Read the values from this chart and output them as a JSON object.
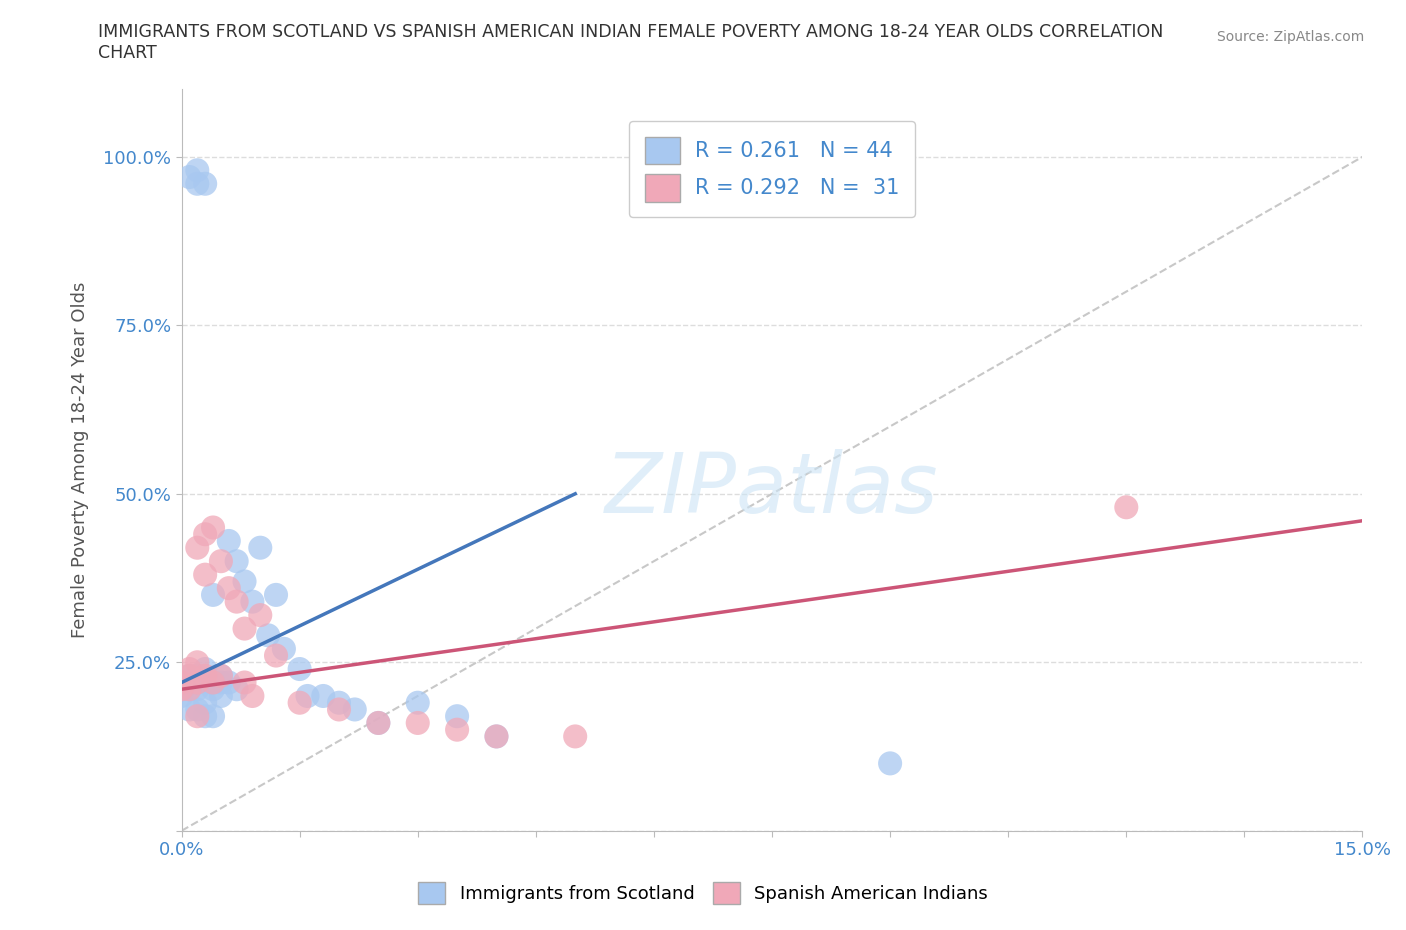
{
  "title": "IMMIGRANTS FROM SCOTLAND VS SPANISH AMERICAN INDIAN FEMALE POVERTY AMONG 18-24 YEAR OLDS CORRELATION\nCHART",
  "source": "Source: ZipAtlas.com",
  "ylabel": "Female Poverty Among 18-24 Year Olds",
  "xlim": [
    0.0,
    0.15
  ],
  "ylim": [
    0.0,
    1.1
  ],
  "ytick_positions": [
    0.0,
    0.25,
    0.5,
    0.75,
    1.0
  ],
  "ytick_labels": [
    "",
    "25.0%",
    "50.0%",
    "75.0%",
    "100.0%"
  ],
  "watermark": "ZIPatlas",
  "blue_color": "#a8c8f0",
  "pink_color": "#f0a8b8",
  "blue_line_color": "#4477bb",
  "pink_line_color": "#cc5577",
  "diag_line_color": "#c8c8c8",
  "R_blue": 0.261,
  "N_blue": 44,
  "R_pink": 0.292,
  "N_pink": 31,
  "grid_color": "#dddddd",
  "background_color": "#ffffff",
  "blue_line_x": [
    0.0,
    0.05
  ],
  "blue_line_y": [
    0.22,
    0.5
  ],
  "pink_line_x": [
    0.0,
    0.15
  ],
  "pink_line_y": [
    0.21,
    0.46
  ],
  "scotland_x": [
    0.0,
    0.0,
    0.001,
    0.001,
    0.001,
    0.001,
    0.002,
    0.002,
    0.002,
    0.002,
    0.003,
    0.003,
    0.003,
    0.004,
    0.004,
    0.004,
    0.005,
    0.005,
    0.005,
    0.006,
    0.006,
    0.007,
    0.007,
    0.008,
    0.009,
    0.01,
    0.011,
    0.012,
    0.013,
    0.015,
    0.016,
    0.018,
    0.02,
    0.022,
    0.025,
    0.03,
    0.035,
    0.04,
    0.09,
    0.001,
    0.002,
    0.003,
    0.003,
    0.004
  ],
  "scotland_y": [
    0.22,
    0.2,
    0.22,
    0.21,
    0.23,
    0.97,
    0.23,
    0.21,
    0.96,
    0.98,
    0.22,
    0.24,
    0.96,
    0.22,
    0.35,
    0.21,
    0.23,
    0.22,
    0.2,
    0.43,
    0.22,
    0.4,
    0.21,
    0.37,
    0.34,
    0.42,
    0.29,
    0.35,
    0.27,
    0.24,
    0.2,
    0.2,
    0.19,
    0.18,
    0.16,
    0.19,
    0.17,
    0.14,
    0.1,
    0.18,
    0.18,
    0.17,
    0.19,
    0.17
  ],
  "spanish_x": [
    0.0,
    0.0,
    0.001,
    0.001,
    0.001,
    0.002,
    0.002,
    0.002,
    0.003,
    0.003,
    0.003,
    0.004,
    0.004,
    0.005,
    0.005,
    0.006,
    0.007,
    0.008,
    0.008,
    0.009,
    0.01,
    0.012,
    0.015,
    0.02,
    0.025,
    0.03,
    0.035,
    0.04,
    0.05,
    0.12,
    0.002
  ],
  "spanish_y": [
    0.22,
    0.21,
    0.23,
    0.21,
    0.24,
    0.25,
    0.42,
    0.22,
    0.44,
    0.38,
    0.23,
    0.45,
    0.22,
    0.4,
    0.23,
    0.36,
    0.34,
    0.3,
    0.22,
    0.2,
    0.32,
    0.26,
    0.19,
    0.18,
    0.16,
    0.16,
    0.15,
    0.14,
    0.14,
    0.48,
    0.17
  ]
}
